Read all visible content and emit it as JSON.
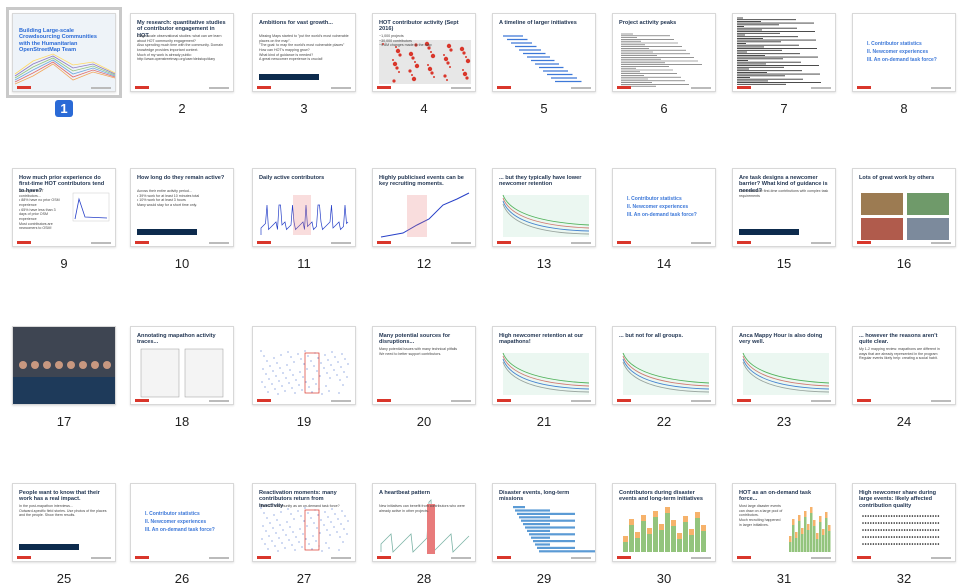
{
  "slides": [
    {
      "n": "1",
      "title": "Building Large-scale Crowdsourcing Communities with the Humanitarian OpenStreetMap Team",
      "body": "",
      "kind": "cover",
      "selected": true
    },
    {
      "n": "2",
      "title": "My research: quantitative studies of contributor engagement in HOT",
      "body": "Large-scale observational studies: what can we learn about HOT community engagement?\nAlso spending much time with the community. Domain knowledge provides important context.\nMuch of my work is already public: http://www.openstreetmap.org/user/dekstop/diary",
      "kind": "text"
    },
    {
      "n": "3",
      "title": "Ambitions for vast growth...",
      "body": "Missing Maps started to \"put the world's most vulnerable places on the map\".\n\"The goal: to map the world's most vulnerable places\"\nHow can HOT's mapping grow?\nWhat kind of guidance is needed?\nA great newcomer experience is crucial!",
      "kind": "text-hl"
    },
    {
      "n": "4",
      "title": "HOT contributor activity (Sept 2016)",
      "body": "~1,000 projects\n~30,000 contributors\n~9.8M changes made to the map",
      "kind": "map"
    },
    {
      "n": "5",
      "title": "A timeline of larger initiatives",
      "body": "",
      "kind": "timeline"
    },
    {
      "n": "6",
      "title": "Project activity peaks",
      "body": "",
      "kind": "peaks"
    },
    {
      "n": "7",
      "title": "",
      "body": "",
      "kind": "dense"
    },
    {
      "n": "8",
      "title": "",
      "body": "I. Contributor statistics\nII. Newcomer experiences\nIII. An on-demand task force?",
      "kind": "section"
    },
    {
      "n": "9",
      "title": "How much prior experience do first-time HOT contributors tend to have?",
      "body": "Among all HOT contributors...\n• 88% have no prior OSM experience\n• 65% have less than 3 days of prior OSM experience\nMost contributors are newcomers to OSM!",
      "kind": "text-chart"
    },
    {
      "n": "10",
      "title": "How long do they remain active?",
      "body": "Across their entire activity period...\n• 39% work for at least 10 minutes total\n• 10% work for at least 3 hours\nMany would stay for a short time only.",
      "kind": "text-hl"
    },
    {
      "n": "11",
      "title": "Daily active contributors",
      "body": "",
      "kind": "spikes"
    },
    {
      "n": "12",
      "title": "Highly publicised events can be key recruiting moments.",
      "body": "",
      "kind": "cumulative"
    },
    {
      "n": "13",
      "title": "... but they typically have lower newcomer retention",
      "body": "",
      "kind": "curves"
    },
    {
      "n": "14",
      "title": "",
      "body": "I. Contributor statistics\nII. Newcomer experiences\nIII. An on-demand task force?",
      "kind": "section"
    },
    {
      "n": "15",
      "title": "Are task designs a newcomer barrier? What kind of guidance is needed?",
      "body": "Can't reconcile first-time contributions with complex task requirements",
      "kind": "text-hl"
    },
    {
      "n": "16",
      "title": "Lots of great work by others",
      "body": "",
      "kind": "images"
    },
    {
      "n": "17",
      "title": "",
      "body": "",
      "kind": "photo"
    },
    {
      "n": "18",
      "title": "Annotating mapathon activity traces...",
      "body": "",
      "kind": "docs"
    },
    {
      "n": "19",
      "title": "",
      "body": "",
      "kind": "scatter"
    },
    {
      "n": "20",
      "title": "Many potential sources for disruptions...",
      "body": "Many potential issues with many technical pitfalls\nWe need to better support contributors.",
      "kind": "text"
    },
    {
      "n": "21",
      "title": "High newcomer retention at our mapathons!",
      "body": "",
      "kind": "curves"
    },
    {
      "n": "22",
      "title": "... but not for all groups.",
      "body": "",
      "kind": "curves"
    },
    {
      "n": "23",
      "title": "Anca Mappy Hour is also doing very well.",
      "body": "",
      "kind": "curves"
    },
    {
      "n": "24",
      "title": "... however the reasons aren't quite clear.",
      "body": "My 1-2 mapping review: mapathons are different in ways that are already represented in the program\nRegular events likely help: creating a social habit.",
      "kind": "text"
    },
    {
      "n": "25",
      "title": "People want to know that their work has a real impact.",
      "body": "In the post-mapathon interviews...\nOutward-specific field stories. Use photos of the places and the people. Show them results.",
      "kind": "text-hl"
    },
    {
      "n": "26",
      "title": "",
      "body": "I. Contributor statistics\nII. Newcomer experiences\nIII. An on-demand task force?",
      "kind": "section"
    },
    {
      "n": "27",
      "title": "Reactivation moments: many contributors return from inactivity",
      "body": "The HOT community as an on-demand task force?",
      "kind": "scatter"
    },
    {
      "n": "28",
      "title": "A heartbeat pattern",
      "body": "New initiatives can benefit from contributors who were already active in other projects.",
      "kind": "heartbeat"
    },
    {
      "n": "29",
      "title": "Disaster events, long-term missions",
      "body": "",
      "kind": "bars"
    },
    {
      "n": "30",
      "title": "Contributors during disaster events and long-term initiatives",
      "body": "",
      "kind": "stacked"
    },
    {
      "n": "31",
      "title": "HOT as an on-demand task force...",
      "body": "Most large disaster events can draw on a large pool of contributors.\nMuch recruiting happened in larger initiatives.",
      "kind": "text-stacked"
    },
    {
      "n": "32",
      "title": "High newcomer share during large events: likely affected contribution quality",
      "body": "",
      "kind": "dots"
    }
  ],
  "colors": {
    "accent": "#2a6ad6",
    "dark": "#0d2b4d",
    "logo": "#d9362b"
  }
}
